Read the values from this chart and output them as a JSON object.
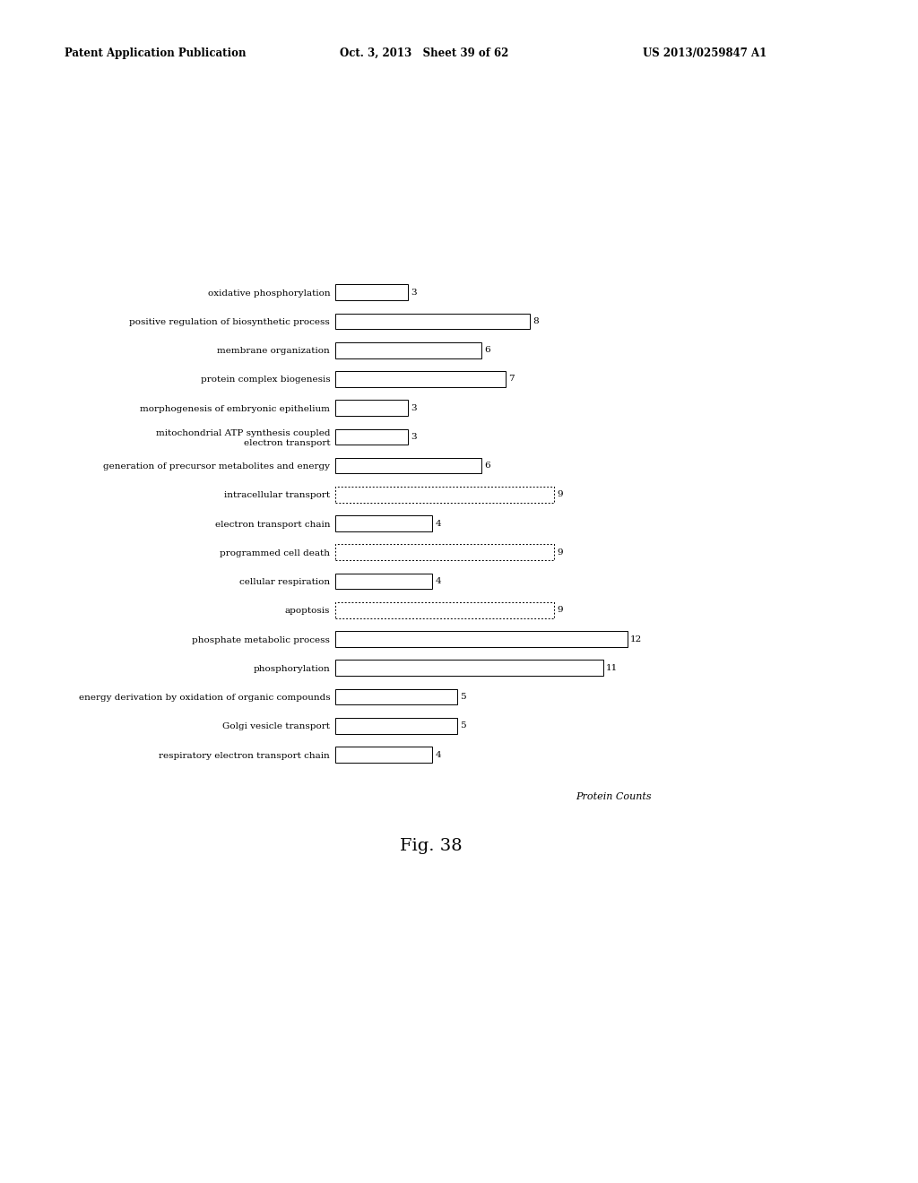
{
  "categories": [
    "oxidative phosphorylation",
    "positive regulation of biosynthetic process",
    "membrane organization",
    "protein complex biogenesis",
    "morphogenesis of embryonic epithelium",
    "mitochondrial ATP synthesis coupled\nelectron transport",
    "generation of precursor metabolites and energy",
    "intracellular transport",
    "electron transport chain",
    "programmed cell death",
    "cellular respiration",
    "apoptosis",
    "phosphate metabolic process",
    "phosphorylation",
    "energy derivation by oxidation of organic compounds",
    "Golgi vesicle transport",
    "respiratory electron transport chain"
  ],
  "values": [
    3,
    8,
    6,
    7,
    3,
    3,
    6,
    9,
    4,
    9,
    4,
    9,
    12,
    11,
    5,
    5,
    4
  ],
  "dotted_bars": [
    7,
    9,
    11
  ],
  "xlabel": "Protein Counts",
  "fig_label": "Fig. 38",
  "header_left": "Patent Application Publication",
  "header_mid": "Oct. 3, 2013   Sheet 39 of 62",
  "header_right": "US 2013/0259847 A1",
  "background_color": "#ffffff",
  "xlim": [
    0,
    13
  ],
  "bar_height": 0.55,
  "fontsize_labels": 7.5,
  "fontsize_value": 7.5,
  "fontsize_xlabel": 8,
  "fontsize_header": 8.5,
  "fontsize_fig_label": 14
}
